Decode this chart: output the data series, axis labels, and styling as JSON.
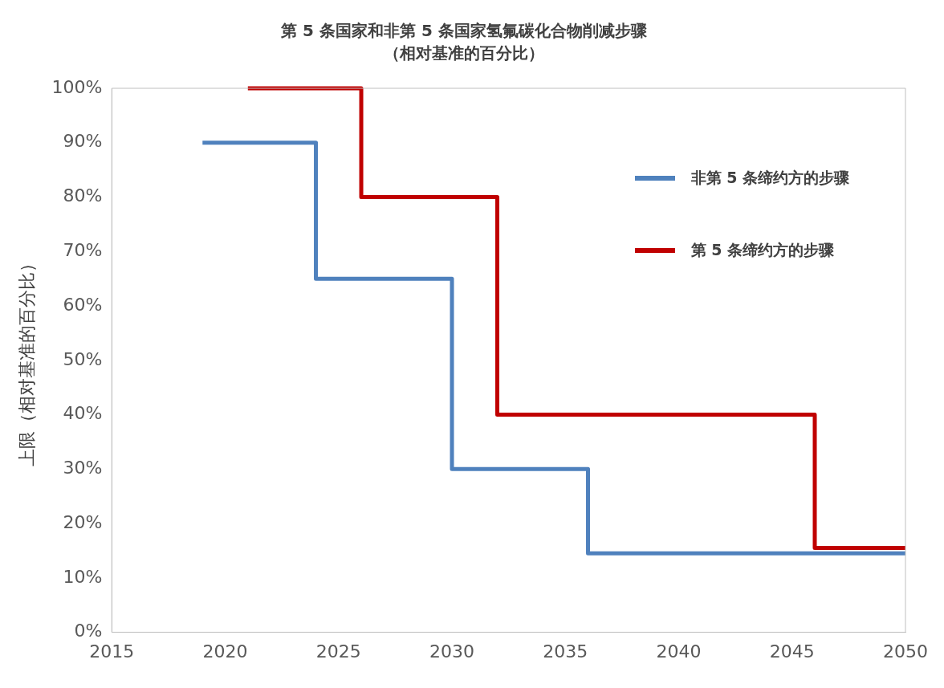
{
  "chart_data": {
    "type": "step",
    "title": "第 5 条国家和非第 5 条国家氢氟碳化合物削减步骤",
    "subtitle": "（相对基准的百分比）",
    "ylabel": "上限（相对基准的百分比）",
    "series": [
      {
        "name": "非第 5 条缔约方的步骤",
        "color": "#4f81bd",
        "x": [
          2019,
          2024,
          2030,
          2036,
          2050
        ],
        "values": [
          90,
          65,
          30,
          14.5,
          14.5
        ]
      },
      {
        "name": "第 5 条缔约方的步骤",
        "color": "#c00000",
        "x": [
          2021,
          2026,
          2032,
          2046,
          2050
        ],
        "values": [
          100,
          80,
          40,
          15.5,
          15.5
        ]
      }
    ],
    "xlim": [
      2015,
      2050
    ],
    "xticks": [
      2015,
      2020,
      2025,
      2030,
      2035,
      2040,
      2045,
      2050
    ],
    "ylim": [
      0,
      100
    ],
    "yticks": [
      {
        "value": 0,
        "label": "0%"
      },
      {
        "value": 10,
        "label": "10%"
      },
      {
        "value": 20,
        "label": "20%"
      },
      {
        "value": 30,
        "label": "30%"
      },
      {
        "value": 40,
        "label": "40%"
      },
      {
        "value": 50,
        "label": "50%"
      },
      {
        "value": 60,
        "label": "60%"
      },
      {
        "value": 70,
        "label": "70%"
      },
      {
        "value": 80,
        "label": "80%"
      },
      {
        "value": 90,
        "label": "90%"
      },
      {
        "value": 100,
        "label": "100%"
      }
    ],
    "grid": false,
    "legend": "top right",
    "marker": "none",
    "line_style": "solid"
  }
}
